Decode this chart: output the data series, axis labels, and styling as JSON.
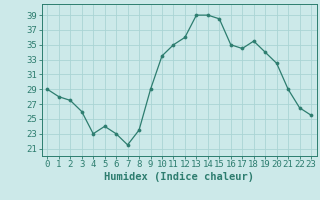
{
  "x": [
    0,
    1,
    2,
    3,
    4,
    5,
    6,
    7,
    8,
    9,
    10,
    11,
    12,
    13,
    14,
    15,
    16,
    17,
    18,
    19,
    20,
    21,
    22,
    23
  ],
  "y": [
    29,
    28,
    27.5,
    26,
    23,
    24,
    23,
    21.5,
    23.5,
    29,
    33.5,
    35,
    36,
    39,
    39,
    38.5,
    35,
    34.5,
    35.5,
    34,
    32.5,
    29,
    26.5,
    25.5
  ],
  "line_color": "#2d7d6f",
  "marker_color": "#2d7d6f",
  "bg_color": "#cce9e9",
  "grid_color": "#aad4d4",
  "xlabel": "Humidex (Indice chaleur)",
  "ylabel_ticks": [
    21,
    23,
    25,
    27,
    29,
    31,
    33,
    35,
    37,
    39
  ],
  "xtick_labels": [
    "0",
    "1",
    "2",
    "3",
    "4",
    "5",
    "6",
    "7",
    "8",
    "9",
    "10",
    "11",
    "12",
    "13",
    "14",
    "15",
    "16",
    "17",
    "18",
    "19",
    "20",
    "21",
    "22",
    "23"
  ],
  "ylim": [
    20,
    40.5
  ],
  "xlim": [
    -0.5,
    23.5
  ],
  "xlabel_fontsize": 7.5,
  "tick_fontsize": 6.5
}
